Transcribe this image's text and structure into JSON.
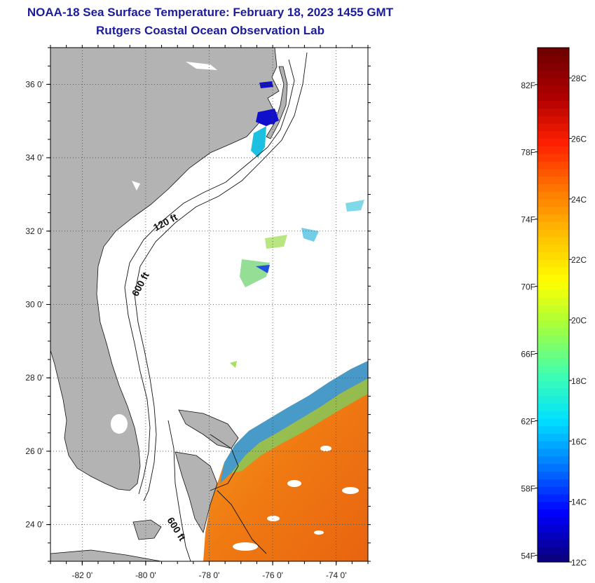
{
  "header": {
    "title_line1": "NOAA-18 Sea Surface Temperature:  February 18, 2023 1455 GMT",
    "title_line2": "Rutgers Coastal Ocean Observation Lab"
  },
  "map": {
    "lon_ticks": [
      {
        "value": -82,
        "label": "-82 0'"
      },
      {
        "value": -80,
        "label": "-80 0'"
      },
      {
        "value": -78,
        "label": "-78 0'"
      },
      {
        "value": -76,
        "label": "-76 0'"
      },
      {
        "value": -74,
        "label": "-74 0'"
      }
    ],
    "lat_ticks": [
      {
        "value": 36,
        "label": "36 0'"
      },
      {
        "value": 34,
        "label": "34 0'"
      },
      {
        "value": 32,
        "label": "32 0'"
      },
      {
        "value": 30,
        "label": "30 0'"
      },
      {
        "value": 28,
        "label": "28 0'"
      },
      {
        "value": 26,
        "label": "26 0'"
      },
      {
        "value": 24,
        "label": "24 0'"
      }
    ],
    "lon_range": [
      -83,
      -73
    ],
    "lat_range": [
      23,
      37
    ],
    "contour_labels": {
      "c120": "120 ft",
      "c600a": "600 ft",
      "c600b": "600 ft"
    },
    "colors": {
      "land": "#b3b3b3",
      "water": "#ffffff",
      "warm_water": "#f07a12",
      "gridline": "#444444"
    }
  },
  "colorbar": {
    "min_c": 12,
    "max_c": 29,
    "celsius_ticks": [
      {
        "value": 28,
        "label": "28C"
      },
      {
        "value": 26,
        "label": "26C"
      },
      {
        "value": 24,
        "label": "24C"
      },
      {
        "value": 22,
        "label": "22C"
      },
      {
        "value": 20,
        "label": "20C"
      },
      {
        "value": 18,
        "label": "18C"
      },
      {
        "value": 16,
        "label": "16C"
      },
      {
        "value": 14,
        "label": "14C"
      },
      {
        "value": 12,
        "label": "12C"
      }
    ],
    "fahrenheit_ticks": [
      {
        "value": 82,
        "label": "82F"
      },
      {
        "value": 78,
        "label": "78F"
      },
      {
        "value": 74,
        "label": "74F"
      },
      {
        "value": 70,
        "label": "70F"
      },
      {
        "value": 66,
        "label": "66F"
      },
      {
        "value": 62,
        "label": "62F"
      },
      {
        "value": 58,
        "label": "58F"
      },
      {
        "value": 54,
        "label": "54F"
      }
    ],
    "palette": [
      "#0a0080",
      "#0000ff",
      "#0078ff",
      "#00e0ff",
      "#40ffb0",
      "#a0ff40",
      "#ffff00",
      "#ffc000",
      "#ff7800",
      "#ff2000",
      "#b00000",
      "#700000"
    ]
  }
}
